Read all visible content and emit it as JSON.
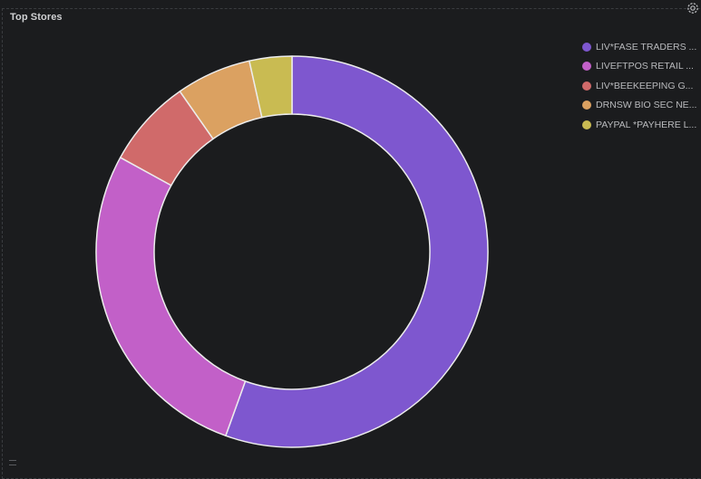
{
  "panel": {
    "title": "Top Stores",
    "settings_icon": "gear-icon"
  },
  "chart_data": {
    "type": "pie",
    "donut": true,
    "title": "",
    "legend_placement": "top-right",
    "slices": [
      {
        "label": "LIV*FASE TRADERS ...",
        "value": 55.5,
        "color": "#7e57cf"
      },
      {
        "label": "LIVEFTPOS RETAIL ...",
        "value": 27.5,
        "color": "#c260c8"
      },
      {
        "label": "LIV*BEEKEEPING G...",
        "value": 7.3,
        "color": "#d06a6a"
      },
      {
        "label": "DRNSW BIO SEC NE...",
        "value": 6.2,
        "color": "#dba161"
      },
      {
        "label": "PAYPAL *PAYHERE L...",
        "value": 3.5,
        "color": "#c9bb52"
      }
    ]
  }
}
